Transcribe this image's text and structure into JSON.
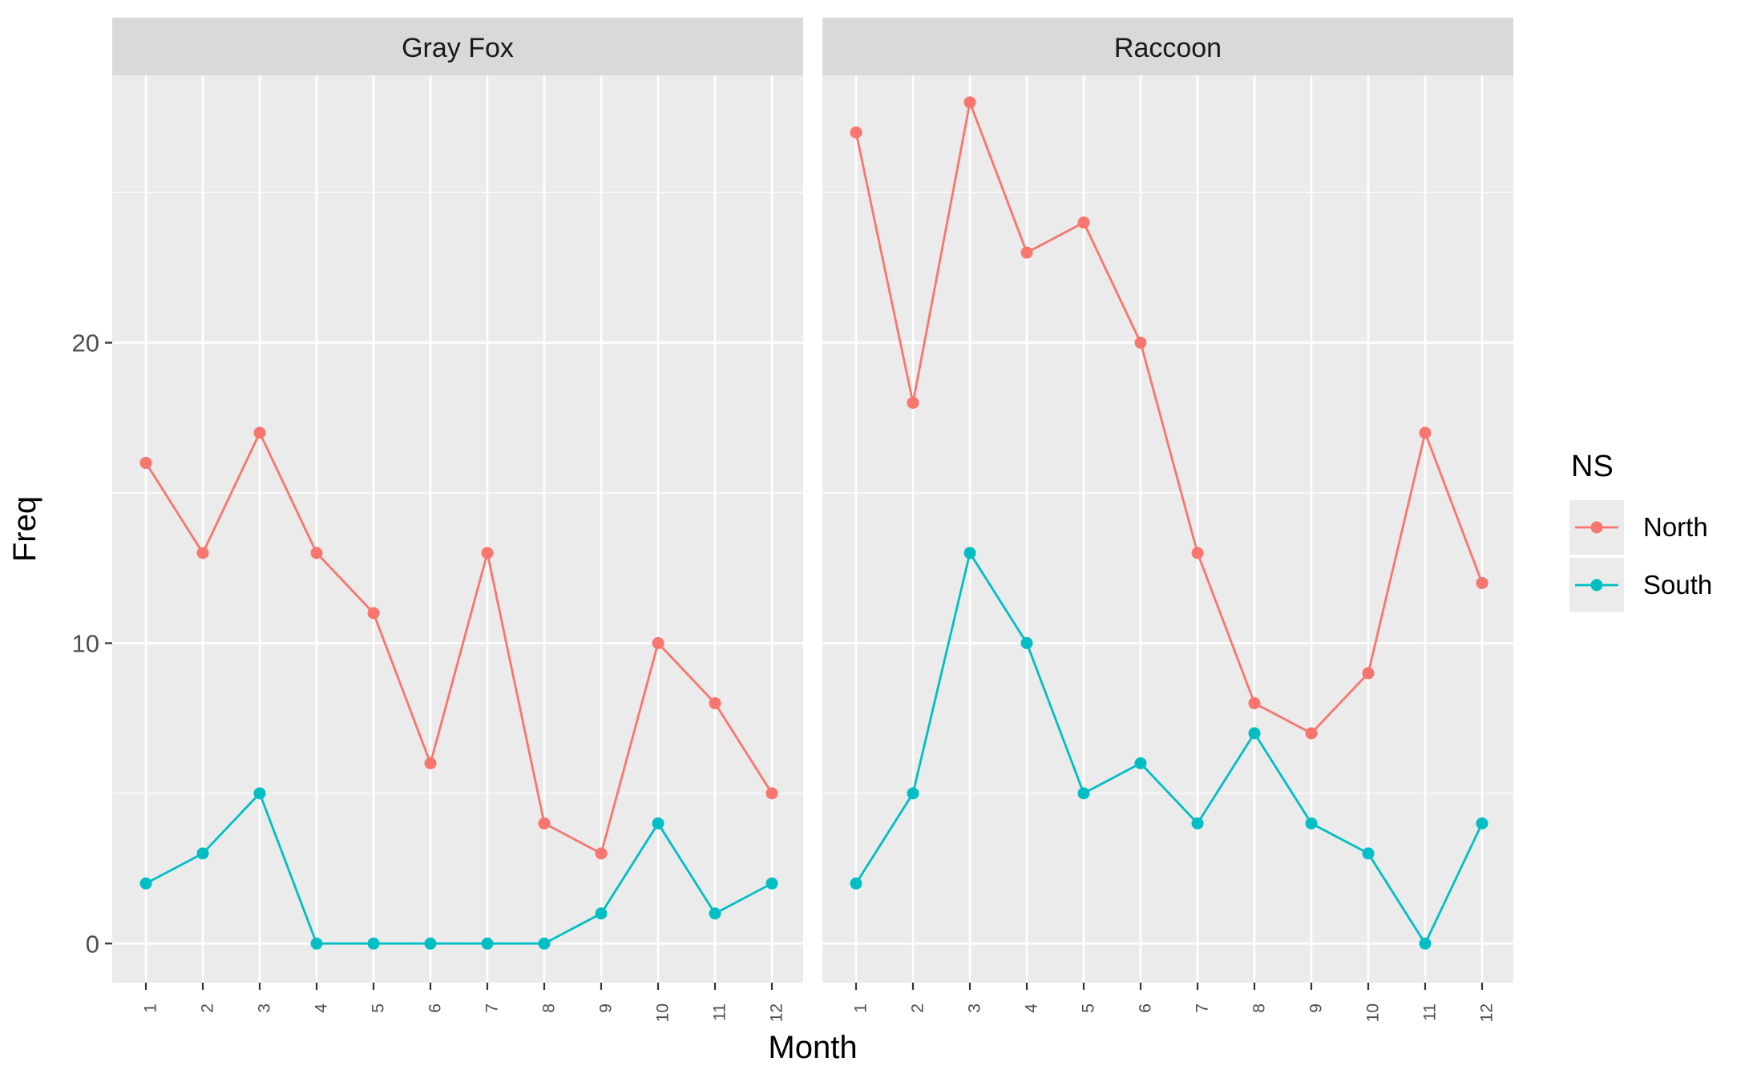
{
  "chart_data": {
    "type": "line",
    "facet_variable_panels": [
      "Gray Fox",
      "Raccoon"
    ],
    "xlabel": "Month",
    "ylabel": "Freq",
    "categories": [
      "1",
      "2",
      "3",
      "4",
      "5",
      "6",
      "7",
      "8",
      "9",
      "10",
      "11",
      "12"
    ],
    "ylim": [
      -1.3,
      28.9
    ],
    "yticks": [
      0,
      10,
      20
    ],
    "grid": true,
    "legend": {
      "title": "NS",
      "position": "right",
      "entries": [
        "North",
        "South"
      ]
    },
    "colors": {
      "North": "#F8766D",
      "South": "#00BFC4"
    },
    "panels": [
      {
        "title": "Gray Fox",
        "series": [
          {
            "name": "North",
            "values": [
              16,
              13,
              17,
              13,
              11,
              6,
              13,
              4,
              3,
              10,
              8,
              5
            ]
          },
          {
            "name": "South",
            "values": [
              2,
              3,
              5,
              0,
              0,
              0,
              0,
              0,
              1,
              4,
              1,
              2
            ]
          }
        ]
      },
      {
        "title": "Raccoon",
        "series": [
          {
            "name": "North",
            "values": [
              27,
              18,
              28,
              23,
              24,
              20,
              13,
              8,
              7,
              9,
              17,
              12
            ]
          },
          {
            "name": "South",
            "values": [
              2,
              5,
              13,
              10,
              5,
              6,
              4,
              7,
              4,
              3,
              0,
              4
            ]
          }
        ]
      }
    ]
  }
}
